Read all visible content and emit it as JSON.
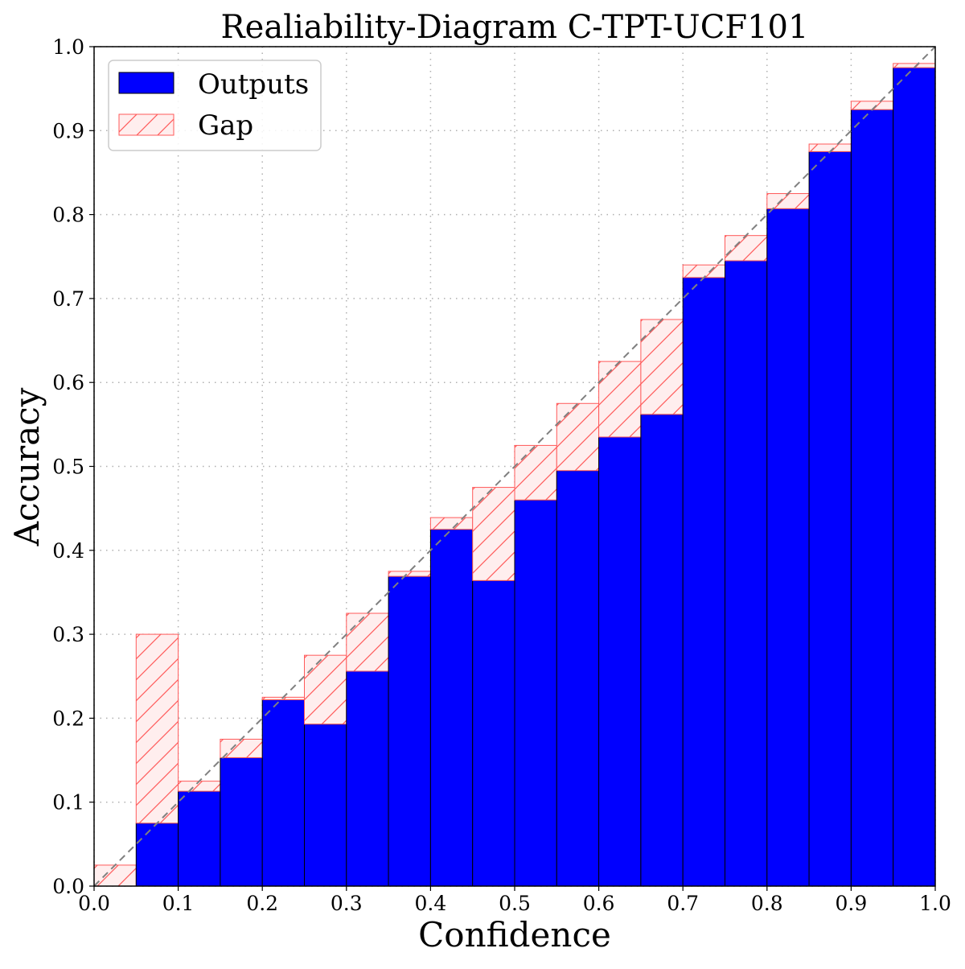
{
  "chart_data": {
    "type": "bar",
    "title": "Realiability-Diagram C-TPT-UCF101",
    "xlabel": "Confidence",
    "ylabel": "Accuracy",
    "xlim": [
      0.0,
      1.0
    ],
    "ylim": [
      0.0,
      1.0
    ],
    "grid": true,
    "legend_placement": "top-left",
    "bin_width": 0.05,
    "bin_starts": [
      0.0,
      0.05,
      0.1,
      0.15,
      0.2,
      0.25,
      0.3,
      0.35,
      0.4,
      0.45,
      0.5,
      0.55,
      0.6,
      0.65,
      0.7,
      0.75,
      0.8,
      0.85,
      0.9,
      0.95
    ],
    "series": [
      {
        "name": "Outputs",
        "values": [
          0.0,
          0.075,
          0.113,
          0.153,
          0.222,
          0.193,
          0.256,
          0.369,
          0.425,
          0.364,
          0.46,
          0.495,
          0.535,
          0.562,
          0.725,
          0.745,
          0.807,
          0.875,
          0.925,
          0.975
        ]
      },
      {
        "name": "Gap",
        "values": [
          0.025,
          0.3,
          0.125,
          0.175,
          0.225,
          0.275,
          0.325,
          0.375,
          0.439,
          0.475,
          0.525,
          0.575,
          0.625,
          0.675,
          0.74,
          0.775,
          0.825,
          0.884,
          0.935,
          0.98
        ]
      }
    ],
    "x_ticks": [
      "0.0",
      "0.1",
      "0.2",
      "0.3",
      "0.4",
      "0.5",
      "0.6",
      "0.7",
      "0.8",
      "0.9",
      "1.0"
    ],
    "y_ticks": [
      "0.0",
      "0.1",
      "0.2",
      "0.3",
      "0.4",
      "0.5",
      "0.6",
      "0.7",
      "0.8",
      "0.9",
      "1.0"
    ],
    "colors": {
      "outputs_fill": "#0000ff",
      "outputs_edge": "#000000",
      "gap_fill": "#ffeeee",
      "gap_edge": "#ff5a5a",
      "gap_over_fill": "#7b7bf0",
      "diagonal": "#808080",
      "grid": "#b0b0b0"
    },
    "legend": {
      "outputs_label": "Outputs",
      "gap_label": "Gap"
    }
  }
}
